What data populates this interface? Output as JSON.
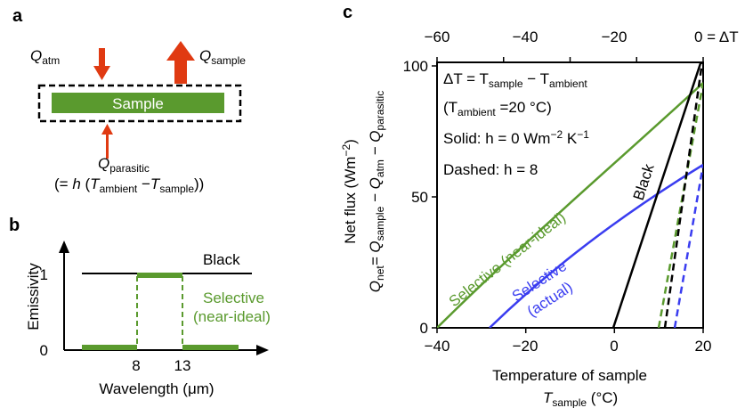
{
  "panel_a": {
    "label": "a",
    "q_atm": "Q",
    "q_atm_sub": "atm",
    "q_sample": "Q",
    "q_sample_sub": "sample",
    "sample_box": "Sample",
    "q_parasitic": "Q",
    "q_parasitic_sub": "parasitic",
    "formula_open": "(= ",
    "formula_h": "h",
    "formula_mid1": " (",
    "formula_t1": "T",
    "formula_t1_sub": "ambient",
    "formula_minus": " −",
    "formula_t2": "T",
    "formula_t2_sub": "sample",
    "formula_close": "))"
  },
  "panel_b": {
    "label": "b",
    "ylabel": "Emissivity",
    "xlabel": "Wavelength (μm)",
    "ytick_1": "1",
    "ytick_0": "0",
    "xtick_8": "8",
    "xtick_13": "13",
    "black_label": "Black",
    "selective_label_1": "Selective",
    "selective_label_2": "(near-ideal)"
  },
  "panel_c": {
    "label": "c",
    "top_ticks": [
      "−60",
      "−40",
      "−20",
      "0 = ΔT"
    ],
    "bottom_ticks": [
      "−40",
      "−20",
      "0",
      "20"
    ],
    "y_ticks": [
      "100",
      "50",
      "0"
    ],
    "xlabel_1": "Temperature of sample",
    "xlabel_2_t": "T",
    "xlabel_2_sub": "sample",
    "xlabel_2_unit": " (°C)",
    "ylabel_1": "Net flux (Wm",
    "ylabel_1_sup": "−2",
    "ylabel_1_end": ")",
    "ylabel_2": "Q",
    "ylabel_2_sub": "net",
    "ylabel_2_eq": "= Q",
    "ylabel_2_sub2": "sample",
    "ylabel_2_m1": " − Q",
    "ylabel_2_sub3": "atm",
    "ylabel_2_m2": " − Q",
    "ylabel_2_sub4": "parasitic",
    "legend_line1_a": "ΔT = T",
    "legend_line1_sub1": "sample",
    "legend_line1_b": " − T",
    "legend_line1_sub2": "ambient",
    "legend_line2_a": "(T",
    "legend_line2_sub": "ambient",
    "legend_line2_b": " =20 °C)",
    "legend_line3_a": "Solid: h = 0 Wm",
    "legend_line3_sup1": "−2",
    "legend_line3_b": " K",
    "legend_line3_sup2": "−1",
    "legend_line4": "Dashed: h = 8",
    "curve_black": "Black",
    "curve_selective_ideal": "Selective (near-ideal)",
    "curve_selective_actual_1": "Selective",
    "curve_selective_actual_2": "(actual)"
  },
  "colors": {
    "green": "#5a9a2e",
    "blue": "#3a3df0",
    "red": "#e03a12",
    "black": "#000000"
  }
}
